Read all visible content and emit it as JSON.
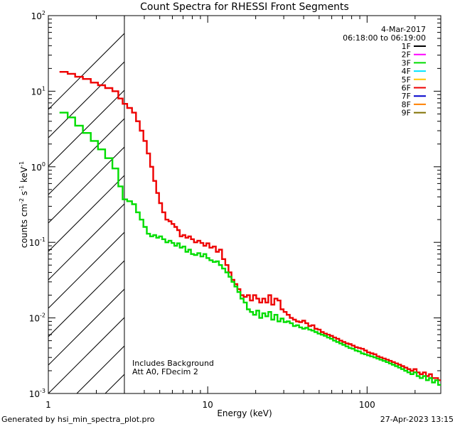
{
  "chart_data": {
    "type": "line",
    "title": "Count Spectra for RHESSI Front Segments",
    "xlabel": "Energy (keV)",
    "ylabel_main": "counts cm",
    "ylabel_exp1": "-2",
    "ylabel_mid": " s",
    "ylabel_exp2": "-1",
    "ylabel_tail": " keV",
    "ylabel_exp3": "-1",
    "x_scale": "log",
    "y_scale": "log",
    "xlim": [
      1,
      290
    ],
    "ylim": [
      0.001,
      100
    ],
    "x_ticks": [
      {
        "value": 1,
        "label": "1"
      },
      {
        "value": 10,
        "label": "10"
      },
      {
        "value": 100,
        "label": "100"
      }
    ],
    "y_ticks": [
      {
        "value": 0.001,
        "base": "10",
        "exp": "-3"
      },
      {
        "value": 0.01,
        "base": "10",
        "exp": "-2"
      },
      {
        "value": 0.1,
        "base": "10",
        "exp": "-1"
      },
      {
        "value": 1,
        "base": "10",
        "exp": "0"
      },
      {
        "value": 10,
        "base": "10",
        "exp": "1"
      },
      {
        "value": 100,
        "base": "10",
        "exp": "2"
      }
    ],
    "shaded_region": {
      "x_from": 1,
      "x_to": 3,
      "style": "diagonal hatching"
    },
    "annotations_top": [
      "4-Mar-2017",
      "06:18:00 to 06:19:00"
    ],
    "annotations_bottom": [
      "Includes Background",
      "Att A0, FDecim 2"
    ],
    "legend": [
      {
        "name": "1F",
        "color": "#000000"
      },
      {
        "name": "2F",
        "color": "#ff00ff"
      },
      {
        "name": "3F",
        "color": "#00dd00"
      },
      {
        "name": "4F",
        "color": "#00e5ff"
      },
      {
        "name": "5F",
        "color": "#ffc800"
      },
      {
        "name": "6F",
        "color": "#ee0000"
      },
      {
        "name": "7F",
        "color": "#0000cc"
      },
      {
        "name": "8F",
        "color": "#ff8000"
      },
      {
        "name": "9F",
        "color": "#807000"
      }
    ],
    "series": [
      {
        "name": "6F",
        "color": "#ee0000",
        "points": [
          [
            1.25,
            18
          ],
          [
            1.4,
            17
          ],
          [
            1.55,
            15.5
          ],
          [
            1.75,
            14.5
          ],
          [
            1.95,
            13
          ],
          [
            2.15,
            12
          ],
          [
            2.4,
            11
          ],
          [
            2.65,
            10
          ],
          [
            2.85,
            8
          ],
          [
            3.0,
            6.8
          ],
          [
            3.25,
            6.0
          ],
          [
            3.45,
            5.2
          ],
          [
            3.65,
            4.0
          ],
          [
            3.85,
            3.0
          ],
          [
            4.05,
            2.2
          ],
          [
            4.25,
            1.5
          ],
          [
            4.45,
            1.0
          ],
          [
            4.65,
            0.65
          ],
          [
            4.85,
            0.45
          ],
          [
            5.05,
            0.33
          ],
          [
            5.3,
            0.25
          ],
          [
            5.55,
            0.2
          ],
          [
            5.8,
            0.19
          ],
          [
            6.05,
            0.175
          ],
          [
            6.3,
            0.16
          ],
          [
            6.55,
            0.145
          ],
          [
            6.8,
            0.12
          ],
          [
            7.1,
            0.125
          ],
          [
            7.4,
            0.115
          ],
          [
            7.7,
            0.12
          ],
          [
            8.0,
            0.11
          ],
          [
            8.4,
            0.1
          ],
          [
            8.8,
            0.105
          ],
          [
            9.2,
            0.098
          ],
          [
            9.6,
            0.09
          ],
          [
            10.0,
            0.097
          ],
          [
            10.5,
            0.085
          ],
          [
            11.0,
            0.088
          ],
          [
            11.5,
            0.075
          ],
          [
            12.0,
            0.08
          ],
          [
            12.6,
            0.06
          ],
          [
            13.2,
            0.05
          ],
          [
            13.8,
            0.04
          ],
          [
            14.4,
            0.032
          ],
          [
            15.0,
            0.028
          ],
          [
            15.7,
            0.024
          ],
          [
            16.4,
            0.02
          ],
          [
            17.2,
            0.019
          ],
          [
            18.0,
            0.02
          ],
          [
            18.8,
            0.017
          ],
          [
            19.7,
            0.02
          ],
          [
            20.6,
            0.018
          ],
          [
            21.5,
            0.016
          ],
          [
            22.5,
            0.018
          ],
          [
            23.5,
            0.016
          ],
          [
            24.5,
            0.02
          ],
          [
            25.6,
            0.015
          ],
          [
            26.8,
            0.018
          ],
          [
            28.0,
            0.017
          ],
          [
            29.3,
            0.013
          ],
          [
            30.6,
            0.012
          ],
          [
            32.0,
            0.011
          ],
          [
            33.5,
            0.01
          ],
          [
            35.0,
            0.0095
          ],
          [
            36.6,
            0.009
          ],
          [
            38.3,
            0.0088
          ],
          [
            40.0,
            0.0092
          ],
          [
            41.8,
            0.0085
          ],
          [
            43.7,
            0.0078
          ],
          [
            45.7,
            0.008
          ],
          [
            47.8,
            0.0072
          ],
          [
            50.0,
            0.007
          ],
          [
            52.3,
            0.0065
          ],
          [
            54.7,
            0.0062
          ],
          [
            57.2,
            0.006
          ],
          [
            59.8,
            0.0058
          ],
          [
            62.5,
            0.0055
          ],
          [
            65.4,
            0.0053
          ],
          [
            68.4,
            0.005
          ],
          [
            71.5,
            0.0048
          ],
          [
            74.8,
            0.0046
          ],
          [
            78.2,
            0.0045
          ],
          [
            81.8,
            0.0043
          ],
          [
            85.5,
            0.0041
          ],
          [
            89.4,
            0.004
          ],
          [
            93.5,
            0.0039
          ],
          [
            97.8,
            0.0037
          ],
          [
            102,
            0.0035
          ],
          [
            107,
            0.0034
          ],
          [
            112,
            0.0033
          ],
          [
            117,
            0.0031
          ],
          [
            122,
            0.003
          ],
          [
            128,
            0.0029
          ],
          [
            134,
            0.0028
          ],
          [
            140,
            0.0027
          ],
          [
            146,
            0.0026
          ],
          [
            153,
            0.0025
          ],
          [
            160,
            0.0024
          ],
          [
            167,
            0.0023
          ],
          [
            175,
            0.0022
          ],
          [
            183,
            0.0021
          ],
          [
            191,
            0.002
          ],
          [
            200,
            0.0021
          ],
          [
            209,
            0.0019
          ],
          [
            219,
            0.0018
          ],
          [
            229,
            0.0019
          ],
          [
            239,
            0.0017
          ],
          [
            250,
            0.0018
          ],
          [
            261,
            0.0016
          ],
          [
            273,
            0.0016
          ],
          [
            285,
            0.0015
          ]
        ]
      },
      {
        "name": "3F",
        "color": "#00dd00",
        "points": [
          [
            1.25,
            5.2
          ],
          [
            1.4,
            4.5
          ],
          [
            1.55,
            3.5
          ],
          [
            1.75,
            2.8
          ],
          [
            1.95,
            2.2
          ],
          [
            2.15,
            1.7
          ],
          [
            2.4,
            1.3
          ],
          [
            2.65,
            0.95
          ],
          [
            2.85,
            0.55
          ],
          [
            3.0,
            0.37
          ],
          [
            3.25,
            0.35
          ],
          [
            3.45,
            0.32
          ],
          [
            3.65,
            0.25
          ],
          [
            3.85,
            0.2
          ],
          [
            4.05,
            0.16
          ],
          [
            4.25,
            0.13
          ],
          [
            4.45,
            0.12
          ],
          [
            4.65,
            0.125
          ],
          [
            4.85,
            0.115
          ],
          [
            5.05,
            0.12
          ],
          [
            5.3,
            0.11
          ],
          [
            5.55,
            0.1
          ],
          [
            5.8,
            0.105
          ],
          [
            6.05,
            0.098
          ],
          [
            6.3,
            0.09
          ],
          [
            6.55,
            0.097
          ],
          [
            6.8,
            0.085
          ],
          [
            7.1,
            0.088
          ],
          [
            7.4,
            0.075
          ],
          [
            7.7,
            0.08
          ],
          [
            8.0,
            0.07
          ],
          [
            8.4,
            0.068
          ],
          [
            8.8,
            0.072
          ],
          [
            9.2,
            0.065
          ],
          [
            9.6,
            0.07
          ],
          [
            10.0,
            0.062
          ],
          [
            10.5,
            0.058
          ],
          [
            11.0,
            0.055
          ],
          [
            11.5,
            0.056
          ],
          [
            12.0,
            0.05
          ],
          [
            12.6,
            0.045
          ],
          [
            13.2,
            0.04
          ],
          [
            13.8,
            0.035
          ],
          [
            14.4,
            0.03
          ],
          [
            15.0,
            0.026
          ],
          [
            15.7,
            0.022
          ],
          [
            16.4,
            0.018
          ],
          [
            17.2,
            0.016
          ],
          [
            18.0,
            0.013
          ],
          [
            18.8,
            0.012
          ],
          [
            19.7,
            0.011
          ],
          [
            20.6,
            0.0125
          ],
          [
            21.5,
            0.01
          ],
          [
            22.5,
            0.0115
          ],
          [
            23.5,
            0.0105
          ],
          [
            24.5,
            0.012
          ],
          [
            25.6,
            0.0095
          ],
          [
            26.8,
            0.011
          ],
          [
            28.0,
            0.009
          ],
          [
            29.3,
            0.0098
          ],
          [
            30.6,
            0.0088
          ],
          [
            32.0,
            0.009
          ],
          [
            33.5,
            0.0085
          ],
          [
            35.0,
            0.0078
          ],
          [
            36.6,
            0.008
          ],
          [
            38.3,
            0.0075
          ],
          [
            40.0,
            0.0072
          ],
          [
            41.8,
            0.0074
          ],
          [
            43.7,
            0.007
          ],
          [
            45.7,
            0.0068
          ],
          [
            47.8,
            0.0065
          ],
          [
            50.0,
            0.0062
          ],
          [
            52.3,
            0.006
          ],
          [
            54.7,
            0.0058
          ],
          [
            57.2,
            0.0055
          ],
          [
            59.8,
            0.0053
          ],
          [
            62.5,
            0.005
          ],
          [
            65.4,
            0.0048
          ],
          [
            68.4,
            0.0046
          ],
          [
            71.5,
            0.0044
          ],
          [
            74.8,
            0.0042
          ],
          [
            78.2,
            0.004
          ],
          [
            81.8,
            0.0039
          ],
          [
            85.5,
            0.0037
          ],
          [
            89.4,
            0.0036
          ],
          [
            93.5,
            0.0034
          ],
          [
            97.8,
            0.0033
          ],
          [
            102,
            0.0032
          ],
          [
            107,
            0.0031
          ],
          [
            112,
            0.003
          ],
          [
            117,
            0.0029
          ],
          [
            122,
            0.0028
          ],
          [
            128,
            0.0027
          ],
          [
            134,
            0.0026
          ],
          [
            140,
            0.0025
          ],
          [
            146,
            0.0024
          ],
          [
            153,
            0.0023
          ],
          [
            160,
            0.0022
          ],
          [
            167,
            0.0021
          ],
          [
            175,
            0.002
          ],
          [
            183,
            0.0019
          ],
          [
            191,
            0.0018
          ],
          [
            200,
            0.0019
          ],
          [
            209,
            0.0017
          ],
          [
            219,
            0.0016
          ],
          [
            229,
            0.0017
          ],
          [
            239,
            0.0015
          ],
          [
            250,
            0.0016
          ],
          [
            261,
            0.0014
          ],
          [
            273,
            0.0015
          ],
          [
            285,
            0.0013
          ]
        ]
      }
    ]
  },
  "footer": {
    "left": "Generated by hsi_min_spectra_plot.pro",
    "right": "27-Apr-2023 13:15"
  }
}
